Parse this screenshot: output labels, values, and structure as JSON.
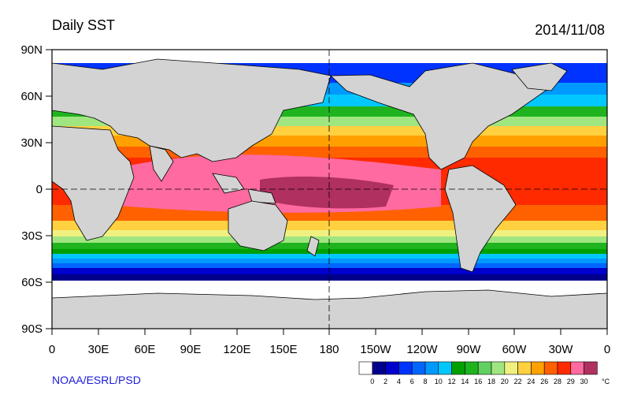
{
  "title": "Daily SST",
  "date": "2014/11/08",
  "credit": "NOAA/ESRL/PSD",
  "lat_labels": [
    "90N",
    "60N",
    "30N",
    "0",
    "30S",
    "60S",
    "90S"
  ],
  "lon_labels": [
    "0",
    "30E",
    "60E",
    "90E",
    "120E",
    "150E",
    "180",
    "150W",
    "120W",
    "90W",
    "60W",
    "30W",
    "0"
  ],
  "colorbar": {
    "unit": "°C",
    "labels": [
      "0",
      "2",
      "4",
      "6",
      "8",
      "10",
      "12",
      "14",
      "16",
      "18",
      "20",
      "22",
      "24",
      "26",
      "28",
      "29",
      "30"
    ],
    "colors": [
      "#ffffff",
      "#00008c",
      "#0000cd",
      "#0033ff",
      "#0066ff",
      "#0099ff",
      "#00c8ff",
      "#00a000",
      "#1fb41f",
      "#60d060",
      "#a0e680",
      "#f0f080",
      "#ffd040",
      "#ffa000",
      "#ff6000",
      "#ff2a00",
      "#ff6aa0",
      "#b03060"
    ]
  },
  "colors": {
    "land": "#d3d3d3",
    "ice": "#ffffff"
  }
}
